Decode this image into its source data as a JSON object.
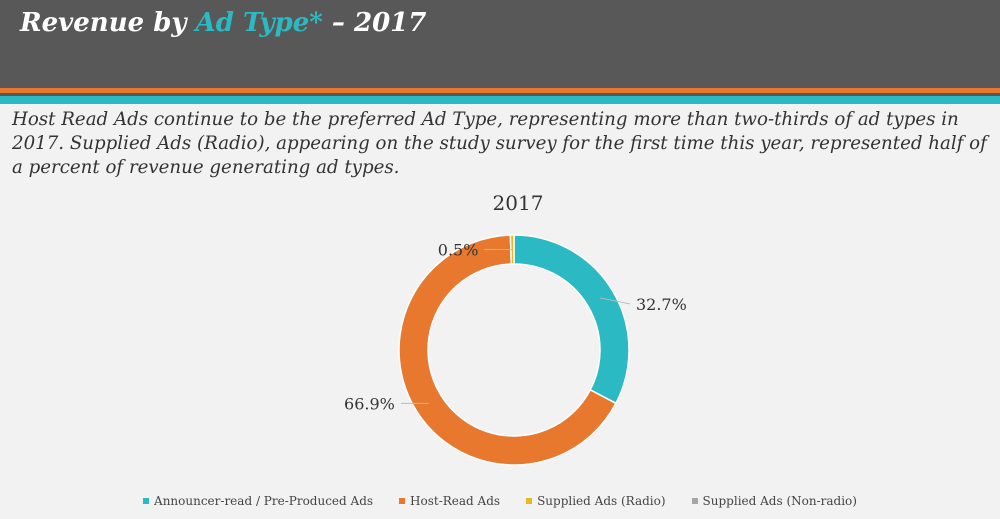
{
  "header": {
    "title_prefix": "Revenue by ",
    "title_accent": "Ad Type*",
    "title_suffix": " – 2017"
  },
  "description": "Host Read Ads continue to be the preferred Ad Type, representing more than two-thirds of ad types in 2017. Supplied Ads (Radio), appearing on the study survey for the first time this year, represented half of a percent of revenue generating ad types.",
  "colors": {
    "teal": "#2bbac3",
    "orange": "#e8782e",
    "gold": "#e8b820",
    "gray": "#a5a5a5",
    "header_bg": "#585858"
  },
  "chart_data": {
    "type": "pie",
    "subtype": "donut",
    "title": "2017",
    "series": [
      {
        "name": "Announcer-read / Pre-Produced Ads",
        "value": 32.7,
        "label": "32.7%",
        "color": "#2bbac3"
      },
      {
        "name": "Host-Read Ads",
        "value": 66.9,
        "label": "66.9%",
        "color": "#e8782e"
      },
      {
        "name": "Supplied Ads (Radio)",
        "value": 0.5,
        "label": "0.5%",
        "color": "#e8b820"
      },
      {
        "name": "Supplied Ads (Non-radio)",
        "value": 0,
        "label": "",
        "color": "#a5a5a5"
      }
    ],
    "legend_position": "bottom"
  }
}
